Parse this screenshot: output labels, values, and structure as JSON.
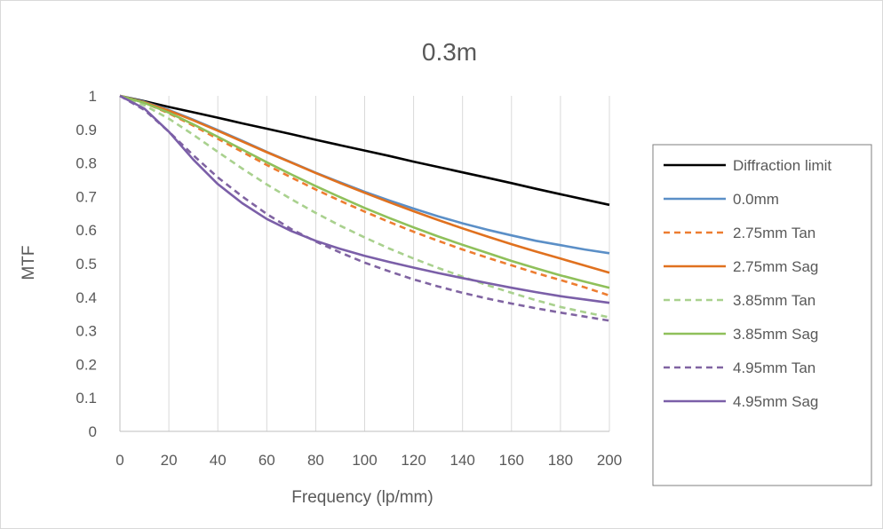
{
  "chart_data": {
    "type": "line",
    "title": "0.3m",
    "xlabel": "Frequency (lp/mm)",
    "ylabel": "MTF",
    "xlim": [
      0,
      200
    ],
    "ylim": [
      0,
      1
    ],
    "xticks": [
      0,
      20,
      40,
      60,
      80,
      100,
      120,
      140,
      160,
      180,
      200
    ],
    "yticks": [
      0,
      0.1,
      0.2,
      0.3,
      0.4,
      0.5,
      0.6,
      0.7,
      0.8,
      0.9,
      1
    ],
    "ytick_labels": [
      "0",
      "0.1",
      "0.2",
      "0.3",
      "0.4",
      "0.5",
      "0.6",
      "0.7",
      "0.8",
      "0.9",
      "1"
    ],
    "grid": "vertical",
    "legend_position": "right",
    "x": [
      0,
      10,
      20,
      30,
      40,
      50,
      60,
      70,
      80,
      90,
      100,
      110,
      120,
      130,
      140,
      150,
      160,
      170,
      180,
      190,
      200
    ],
    "series": [
      {
        "name": "Diffraction limit",
        "color": "#000000",
        "dash": "solid",
        "values": [
          1.0,
          0.984,
          0.967,
          0.951,
          0.935,
          0.918,
          0.902,
          0.886,
          0.869,
          0.853,
          0.837,
          0.821,
          0.804,
          0.788,
          0.772,
          0.756,
          0.74,
          0.723,
          0.707,
          0.691,
          0.675
        ]
      },
      {
        "name": "0.0mm",
        "color": "#5b8fc7",
        "dash": "solid",
        "values": [
          1.0,
          0.982,
          0.958,
          0.929,
          0.898,
          0.866,
          0.833,
          0.802,
          0.771,
          0.742,
          0.714,
          0.688,
          0.664,
          0.641,
          0.62,
          0.601,
          0.584,
          0.568,
          0.555,
          0.542,
          0.531
        ]
      },
      {
        "name": "2.75mm Tan",
        "color": "#ed7d31",
        "dash": "dash",
        "values": [
          1.0,
          0.979,
          0.948,
          0.911,
          0.872,
          0.833,
          0.794,
          0.757,
          0.721,
          0.687,
          0.655,
          0.624,
          0.595,
          0.568,
          0.542,
          0.518,
          0.495,
          0.472,
          0.451,
          0.429,
          0.405
        ]
      },
      {
        "name": "2.75mm Sag",
        "color": "#e0711f",
        "dash": "solid",
        "values": [
          1.0,
          0.981,
          0.956,
          0.927,
          0.896,
          0.864,
          0.832,
          0.801,
          0.77,
          0.74,
          0.711,
          0.683,
          0.656,
          0.63,
          0.605,
          0.581,
          0.558,
          0.536,
          0.515,
          0.494,
          0.473
        ]
      },
      {
        "name": "3.85mm Tan",
        "color": "#a9d18e",
        "dash": "dash",
        "values": [
          1.0,
          0.972,
          0.932,
          0.884,
          0.833,
          0.783,
          0.736,
          0.692,
          0.651,
          0.613,
          0.578,
          0.545,
          0.515,
          0.487,
          0.461,
          0.436,
          0.413,
          0.391,
          0.371,
          0.355,
          0.34
        ]
      },
      {
        "name": "3.85mm Sag",
        "color": "#8fc05a",
        "dash": "solid",
        "values": [
          1.0,
          0.979,
          0.95,
          0.915,
          0.878,
          0.84,
          0.802,
          0.766,
          0.731,
          0.698,
          0.666,
          0.636,
          0.608,
          0.581,
          0.556,
          0.532,
          0.508,
          0.486,
          0.465,
          0.446,
          0.428
        ]
      },
      {
        "name": "4.95mm Tan",
        "color": "#8064a2",
        "dash": "dash",
        "values": [
          1.0,
          0.958,
          0.893,
          0.823,
          0.757,
          0.7,
          0.648,
          0.603,
          0.566,
          0.533,
          0.503,
          0.477,
          0.453,
          0.432,
          0.413,
          0.396,
          0.381,
          0.367,
          0.354,
          0.342,
          0.33
        ]
      },
      {
        "name": "4.95mm Sag",
        "color": "#7b5fa8",
        "dash": "solid",
        "values": [
          1.0,
          0.962,
          0.893,
          0.81,
          0.737,
          0.68,
          0.633,
          0.597,
          0.568,
          0.544,
          0.523,
          0.505,
          0.488,
          0.472,
          0.457,
          0.442,
          0.428,
          0.415,
          0.403,
          0.393,
          0.383
        ]
      }
    ]
  }
}
